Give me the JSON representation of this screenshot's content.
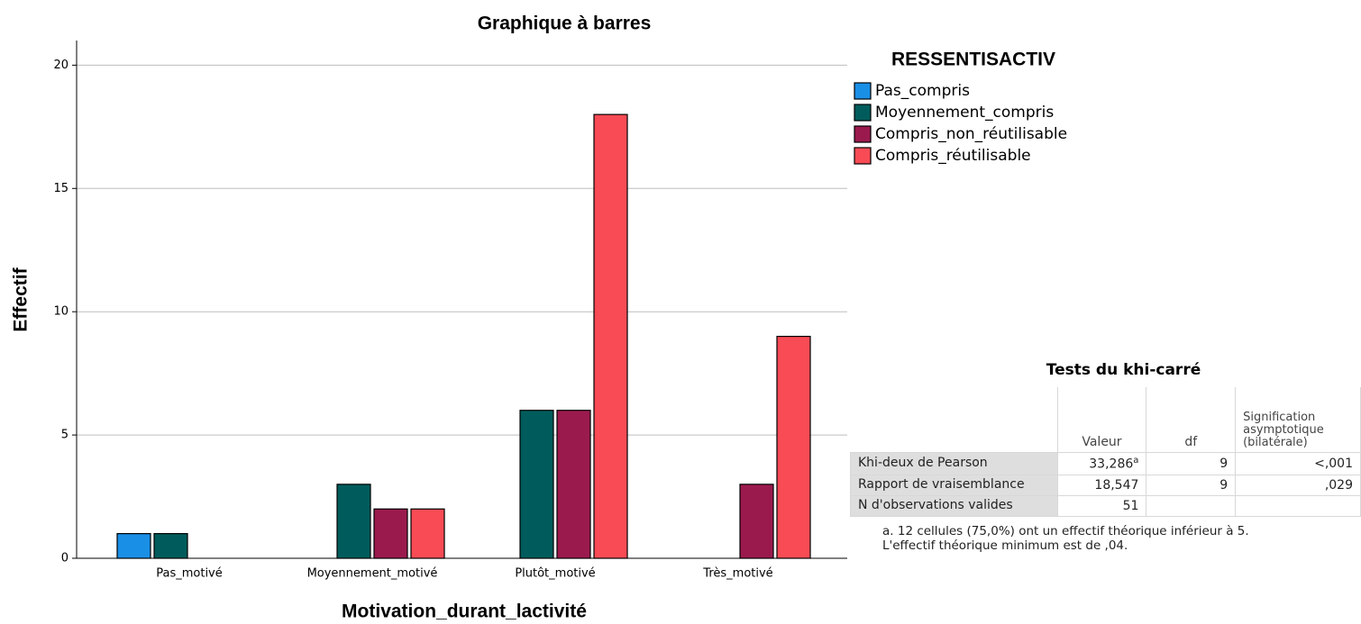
{
  "chart_data": {
    "type": "bar",
    "title": "Graphique à barres",
    "x_label": "Motivation_durant_lactivité",
    "y_label": "Effectif",
    "legend_title": "RESSENTISACTIV",
    "categories": [
      "Pas_motivé",
      "Moyennement_motivé",
      "Plutôt_motivé",
      "Très_motivé"
    ],
    "series": [
      {
        "name": "Pas_compris",
        "color": "#1a8fe6",
        "values": [
          1,
          0,
          0,
          0
        ]
      },
      {
        "name": "Moyennement_compris",
        "color": "#005c5c",
        "values": [
          1,
          3,
          6,
          0
        ]
      },
      {
        "name": "Compris_non_réutilisable",
        "color": "#9b1a4e",
        "values": [
          0,
          2,
          6,
          3
        ]
      },
      {
        "name": "Compris_réutilisable",
        "color": "#f84b55",
        "values": [
          0,
          2,
          18,
          9
        ]
      }
    ],
    "ylim": [
      0,
      21
    ],
    "yticks": [
      0,
      5,
      10,
      15,
      20
    ],
    "grid": true,
    "legend": "right"
  },
  "table": {
    "title": "Tests du khi-carré",
    "headers": [
      "Valeur",
      "df",
      "Signification asymptotique (bilatérale)"
    ],
    "rows": [
      {
        "label": "Khi-deux de Pearson",
        "cells": [
          "33,286",
          "9",
          "<,001"
        ],
        "note": "a"
      },
      {
        "label": "Rapport de vraisemblance",
        "cells": [
          "18,547",
          "9",
          ",029"
        ]
      },
      {
        "label": "N d'observations valides",
        "cells": [
          "51"
        ]
      }
    ],
    "footnote": "a. 12 cellules (75,0%) ont un effectif théorique inférieur à 5. L'effectif théorique minimum est de ,04."
  }
}
